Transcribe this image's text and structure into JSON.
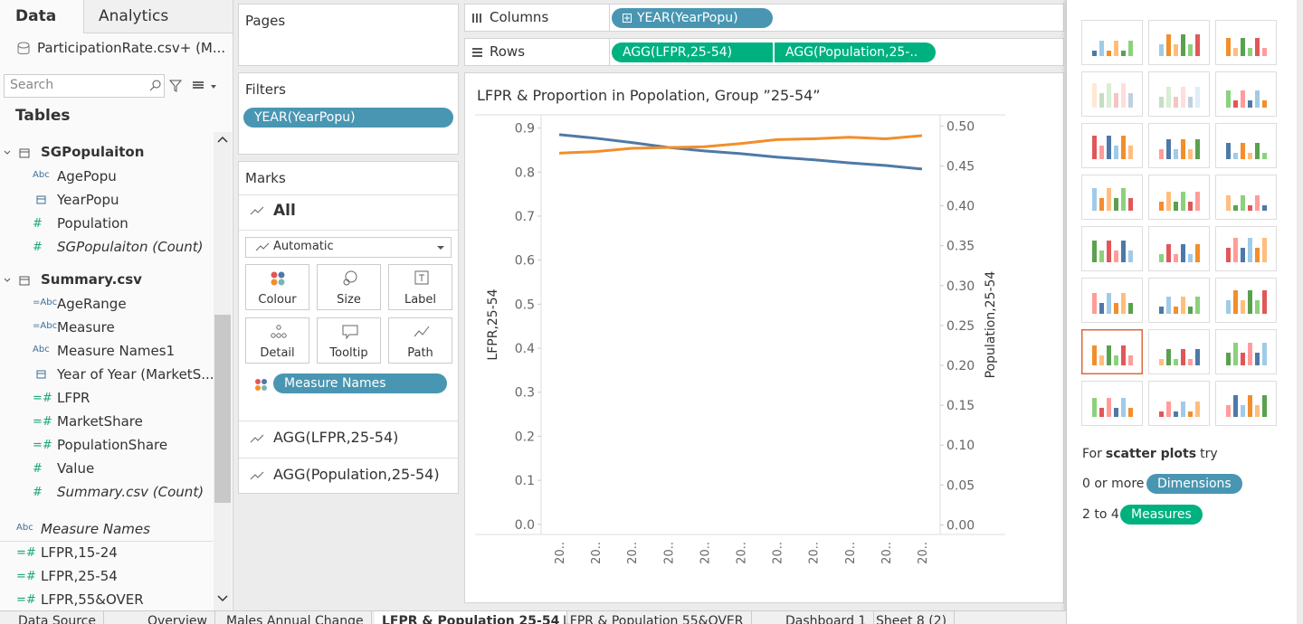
{
  "sidebar": {
    "tabs": [
      "Data",
      "Analytics"
    ],
    "source": "ParticipationRate.csv+ (M...",
    "search_placeholder": "Search",
    "tables_title": "Tables",
    "tables": [
      {
        "name": "SGPopulaiton",
        "fields": [
          {
            "icon": "Abc",
            "name": "AgePopu"
          },
          {
            "name": "YearPopu"
          },
          {
            "icon": "#",
            "name": "Population"
          },
          {
            "icon": "#",
            "name": "SGPopulaiton (Count)",
            "italic": true
          }
        ]
      },
      {
        "name": "Summary.csv",
        "fields": [
          {
            "icon": "=Abc",
            "name": "AgeRange"
          },
          {
            "icon": "=Abc",
            "name": "Measure"
          },
          {
            "icon": "Abc",
            "name": "Measure Names1"
          },
          {
            "name": "Year of Year (MarketS..."
          },
          {
            "icon": "=#",
            "name": "LFPR"
          },
          {
            "icon": "=#",
            "name": "MarketShare"
          },
          {
            "icon": "=#",
            "name": "PopulationShare"
          },
          {
            "icon": "#",
            "name": "Value"
          },
          {
            "icon": "#",
            "name": "Summary.csv (Count)",
            "italic": true
          }
        ]
      }
    ],
    "extra_fields": [
      {
        "icon": "Abc",
        "name": "Measure Names",
        "italic": true
      },
      {
        "icon": "=#",
        "name": "LFPR,15-24"
      },
      {
        "icon": "=#",
        "name": "LFPR,25-54"
      },
      {
        "icon": "=#",
        "name": "LFPR,55&OVER"
      }
    ]
  },
  "pages": {
    "title": "Pages"
  },
  "filters": {
    "title": "Filters",
    "pills": [
      "YEAR(YearPopu)"
    ]
  },
  "marks": {
    "title": "Marks",
    "all": "All",
    "mark_type": "Automatic",
    "buttons": [
      "Colour",
      "Size",
      "Label",
      "Detail",
      "Tooltip",
      "Path"
    ],
    "color_pill": "Measure Names",
    "measures": [
      "AGG(LFPR,25-54)",
      "AGG(Population,25-54)"
    ]
  },
  "shelves": {
    "columns": {
      "label": "Columns",
      "pills": [
        "YEAR(YearPopu)"
      ]
    },
    "rows": {
      "label": "Rows",
      "pills": [
        "AGG(LFPR,25-54)",
        "AGG(Population,25-.."
      ]
    }
  },
  "chart_data": {
    "type": "line",
    "title": "LFPR & Proportion in Popolation, Group ”25-54”",
    "y_label": "LFPR,25-54",
    "y2_label": "Population,25-54",
    "categories": [
      "20..",
      "20..",
      "20..",
      "20..",
      "20..",
      "20..",
      "20..",
      "20..",
      "20..",
      "20..",
      "20.."
    ],
    "series": [
      {
        "name": "AGG(LFPR,25-54)",
        "color": "#4e79a7",
        "values": [
          0.885,
          0.877,
          0.867,
          0.856,
          0.848,
          0.842,
          0.834,
          0.828,
          0.821,
          0.815,
          0.807
        ]
      },
      {
        "name": "AGG(Population,25-54)",
        "color": "#f28e2b",
        "axis": "y2",
        "values": [
          0.466,
          0.468,
          0.472,
          0.473,
          0.474,
          0.478,
          0.483,
          0.484,
          0.486,
          0.484,
          0.488
        ]
      }
    ],
    "ylim": [
      -0.023,
      0.93
    ],
    "yticks": [
      {
        "value": 0,
        "label": "0.0"
      },
      0.1,
      0.2,
      0.3,
      0.4,
      0.5,
      0.6,
      0.7,
      0.8,
      0.9
    ],
    "y2lim": [
      -0.012,
      0.514
    ],
    "y2ticks": [
      {
        "value": 0,
        "label": "0.00"
      },
      0.05,
      {
        "value": 0.1,
        "label": "0.10"
      },
      0.15,
      {
        "value": 0.2,
        "label": "0.20"
      },
      0.25,
      {
        "value": 0.3,
        "label": "0.30"
      },
      0.35,
      {
        "value": 0.4,
        "label": "0.40"
      },
      0.45,
      {
        "value": 0.5,
        "label": "0.50"
      }
    ],
    "grid": false
  },
  "show_me": {
    "hint": {
      "prefix": "For",
      "bold": "scatter plots",
      "suffix": "try"
    },
    "requirements": [
      {
        "text": "0 or more",
        "pill": "Dimensions",
        "kind": "dimension"
      },
      {
        "text": "2 to 4",
        "pill": "Measures",
        "kind": "measure"
      }
    ]
  },
  "sheet_tabs": [
    "Data Source",
    "Overview",
    "Males Annual Change",
    "LFPR & Population 25-54",
    "LFPR & Population 55&OVER",
    "Dashboard 1",
    "Sheet 8 (2)"
  ]
}
